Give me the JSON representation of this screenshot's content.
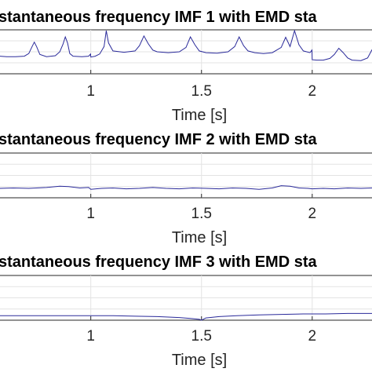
{
  "chart_data": [
    {
      "type": "line",
      "title": "stantaneous frequency IMF 1 with EMD sta",
      "xlabel": "Time [s]",
      "ylabel": "",
      "xlim": [
        0.59,
        2.27
      ],
      "ylim": [
        0,
        1
      ],
      "xticks": [
        1,
        1.5,
        2
      ],
      "xtick_labels": [
        "1",
        "1.5",
        "2"
      ],
      "grid": true,
      "color": "#2a2a9a",
      "series": [
        {
          "x": [
            0.59,
            0.62,
            0.66,
            0.7,
            0.72,
            0.735,
            0.745,
            0.755,
            0.77,
            0.8,
            0.84,
            0.86,
            0.875,
            0.885,
            0.895,
            0.905,
            0.92,
            0.96,
            0.99,
            0.999,
            1.0,
            1.02,
            1.04,
            1.06,
            1.07,
            1.08,
            1.1,
            1.15,
            1.2,
            1.22,
            1.24,
            1.26,
            1.28,
            1.3,
            1.35,
            1.4,
            1.43,
            1.45,
            1.47,
            1.49,
            1.52,
            1.57,
            1.62,
            1.65,
            1.67,
            1.69,
            1.71,
            1.74,
            1.78,
            1.82,
            1.86,
            1.88,
            1.9,
            1.92,
            1.94,
            1.96,
            1.99,
            1.999,
            2.0,
            2.02,
            2.05,
            2.08,
            2.1,
            2.12,
            2.14,
            2.16,
            2.18,
            2.22,
            2.25,
            2.265,
            2.27
          ],
          "y": [
            0.4,
            0.39,
            0.39,
            0.4,
            0.46,
            0.62,
            0.72,
            0.62,
            0.44,
            0.39,
            0.41,
            0.5,
            0.68,
            0.84,
            0.7,
            0.46,
            0.4,
            0.39,
            0.4,
            0.45,
            0.38,
            0.4,
            0.45,
            0.62,
            0.98,
            0.7,
            0.52,
            0.49,
            0.52,
            0.64,
            0.86,
            0.68,
            0.54,
            0.5,
            0.48,
            0.5,
            0.6,
            0.84,
            0.66,
            0.52,
            0.48,
            0.47,
            0.5,
            0.62,
            0.84,
            0.64,
            0.52,
            0.48,
            0.46,
            0.48,
            0.6,
            0.83,
            0.62,
            0.98,
            0.66,
            0.52,
            0.48,
            0.54,
            0.32,
            0.31,
            0.31,
            0.35,
            0.44,
            0.58,
            0.48,
            0.36,
            0.31,
            0.3,
            0.36,
            0.5,
            0.55
          ]
        }
      ]
    },
    {
      "type": "line",
      "title": "stantaneous frequency IMF 2 with EMD sta",
      "xlabel": "Time [s]",
      "ylabel": "",
      "xlim": [
        0.59,
        2.27
      ],
      "ylim": [
        0,
        1
      ],
      "xticks": [
        1,
        1.5,
        2
      ],
      "xtick_labels": [
        "1",
        "1.5",
        "2"
      ],
      "grid": true,
      "color": "#2a2a9a",
      "series": [
        {
          "x": [
            0.59,
            0.65,
            0.72,
            0.8,
            0.86,
            0.9,
            0.95,
            0.99,
            1.0,
            1.05,
            1.1,
            1.16,
            1.22,
            1.28,
            1.34,
            1.4,
            1.46,
            1.52,
            1.58,
            1.64,
            1.7,
            1.76,
            1.82,
            1.86,
            1.9,
            1.94,
            1.98,
            2.0,
            2.05,
            2.1,
            2.16,
            2.22,
            2.27
          ],
          "y": [
            0.21,
            0.22,
            0.21,
            0.23,
            0.26,
            0.25,
            0.22,
            0.23,
            0.19,
            0.21,
            0.22,
            0.2,
            0.21,
            0.23,
            0.21,
            0.2,
            0.22,
            0.21,
            0.2,
            0.22,
            0.21,
            0.19,
            0.22,
            0.27,
            0.26,
            0.22,
            0.21,
            0.2,
            0.21,
            0.2,
            0.22,
            0.21,
            0.22
          ]
        }
      ]
    },
    {
      "type": "line",
      "title": "stantaneous frequency IMF 3 with EMD sta",
      "xlabel": "Time [s]",
      "ylabel": "",
      "xlim": [
        0.59,
        2.27
      ],
      "ylim": [
        0,
        1
      ],
      "xticks": [
        1,
        1.5,
        2
      ],
      "xtick_labels": [
        "1",
        "1.5",
        "2"
      ],
      "grid": true,
      "color": "#2a2a9a",
      "series": [
        {
          "x": [
            0.59,
            0.7,
            0.8,
            0.9,
            1.0,
            1.1,
            1.2,
            1.3,
            1.4,
            1.45,
            1.49,
            1.5,
            1.52,
            1.58,
            1.66,
            1.76,
            1.86,
            1.96,
            2.06,
            2.16,
            2.27
          ],
          "y": [
            0.1,
            0.1,
            0.1,
            0.1,
            0.1,
            0.1,
            0.09,
            0.08,
            0.06,
            0.04,
            0.02,
            0.0,
            0.05,
            0.08,
            0.1,
            0.12,
            0.13,
            0.14,
            0.14,
            0.15,
            0.15
          ]
        }
      ]
    }
  ]
}
